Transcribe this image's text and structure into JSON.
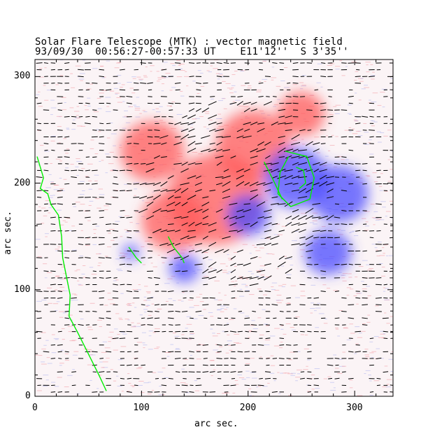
{
  "chart_data": {
    "type": "heatmap",
    "title": "Solar Flare Telescope (MTK) : vector magnetic field",
    "subtitle": "93/09/30  00:56:27-00:57:33 UT    E11'12''  S 3'35''",
    "xlabel": "arc sec.",
    "ylabel": "arc sec.",
    "xlim": [
      0,
      336
    ],
    "ylim": [
      0,
      316
    ],
    "xticks": [
      "0",
      "100",
      "200",
      "300"
    ],
    "yticks": [
      "0",
      "100",
      "200",
      "300"
    ],
    "colors": {
      "positive": "#ff5a5a",
      "negative": "#4a4aff",
      "neutral_line": "#00ee00",
      "vectors": "#000000"
    },
    "regions": [
      {
        "polarity": "positive",
        "x": 170,
        "y": 185,
        "r": 45
      },
      {
        "polarity": "positive",
        "x": 130,
        "y": 165,
        "r": 30
      },
      {
        "polarity": "positive",
        "x": 205,
        "y": 235,
        "r": 35
      },
      {
        "polarity": "positive",
        "x": 110,
        "y": 230,
        "r": 30
      },
      {
        "polarity": "positive",
        "x": 250,
        "y": 265,
        "r": 22
      },
      {
        "polarity": "negative",
        "x": 245,
        "y": 205,
        "r": 30
      },
      {
        "polarity": "negative",
        "x": 285,
        "y": 190,
        "r": 28
      },
      {
        "polarity": "negative",
        "x": 275,
        "y": 135,
        "r": 22
      },
      {
        "polarity": "negative",
        "x": 200,
        "y": 170,
        "r": 20
      },
      {
        "polarity": "negative",
        "x": 140,
        "y": 120,
        "r": 14
      },
      {
        "polarity": "negative",
        "x": 90,
        "y": 135,
        "r": 8
      }
    ],
    "neutral_lines": [
      [
        [
          2,
          225
        ],
        [
          8,
          205
        ],
        [
          5,
          195
        ],
        [
          12,
          190
        ],
        [
          15,
          180
        ],
        [
          22,
          170
        ],
        [
          25,
          150
        ],
        [
          26,
          130
        ],
        [
          30,
          110
        ],
        [
          33,
          95
        ],
        [
          32,
          75
        ],
        [
          40,
          60
        ],
        [
          50,
          40
        ],
        [
          60,
          20
        ],
        [
          67,
          5
        ]
      ],
      [
        [
          125,
          150
        ],
        [
          130,
          140
        ],
        [
          138,
          130
        ],
        [
          140,
          125
        ]
      ],
      [
        [
          88,
          140
        ],
        [
          95,
          130
        ],
        [
          100,
          125
        ]
      ],
      [
        [
          215,
          220
        ],
        [
          225,
          200
        ],
        [
          232,
          185
        ]
      ],
      [
        [
          235,
          230
        ],
        [
          255,
          225
        ],
        [
          262,
          205
        ],
        [
          258,
          185
        ],
        [
          240,
          178
        ],
        [
          228,
          190
        ],
        [
          230,
          210
        ],
        [
          238,
          225
        ]
      ],
      [
        [
          245,
          215
        ],
        [
          252,
          212
        ],
        [
          254,
          200
        ],
        [
          248,
          195
        ]
      ]
    ]
  }
}
